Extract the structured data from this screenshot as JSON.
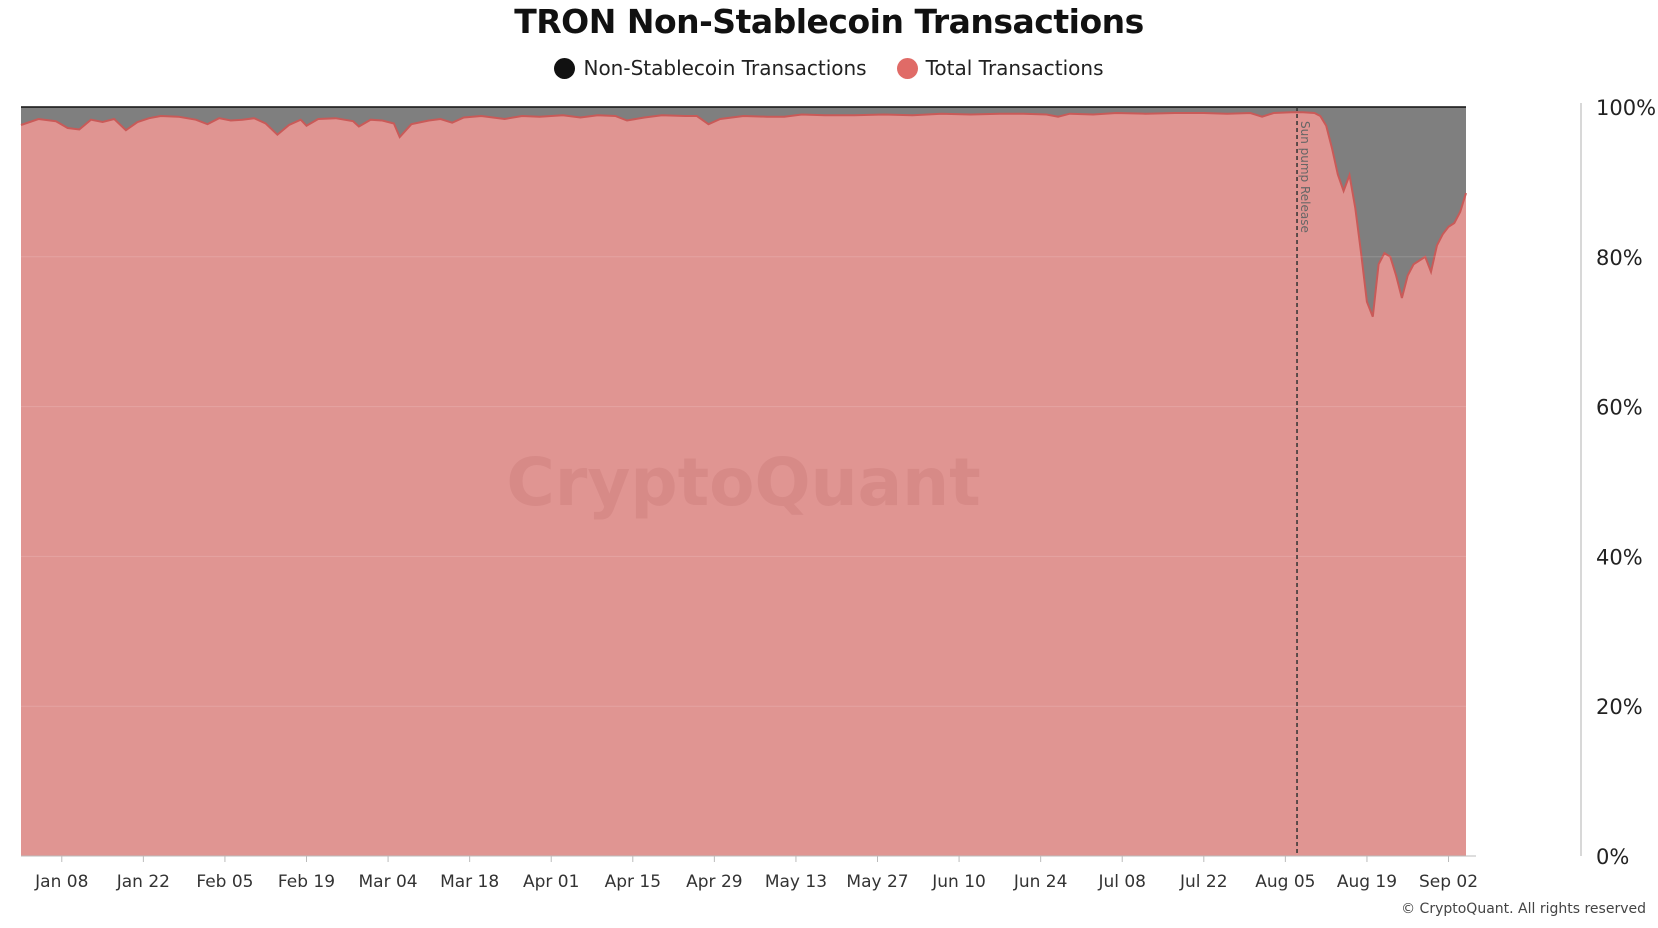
{
  "colors": {
    "non_stablecoin": "#7f7f7f",
    "total": "#e09592",
    "total_line": "#c95a58",
    "legend_non_stablecoin": "#111111",
    "legend_total": "#e06b67"
  },
  "watermark": "CryptoQuant",
  "copyright": "© CryptoQuant. All rights reserved",
  "chart_data": {
    "type": "area",
    "title": "TRON Non-Stablecoin Transactions",
    "legend": [
      {
        "name": "Non-Stablecoin Transactions",
        "color_key": "legend_non_stablecoin"
      },
      {
        "name": "Total Transactions",
        "color_key": "legend_total"
      }
    ],
    "legend_position": "top-center",
    "x_ticks": [
      "Jan 08",
      "Jan 22",
      "Feb 05",
      "Feb 19",
      "Mar 04",
      "Mar 18",
      "Apr 01",
      "Apr 15",
      "Apr 29",
      "May 13",
      "May 27",
      "Jun 10",
      "Jun 24",
      "Jul 08",
      "Jul 22",
      "Aug 05",
      "Aug 19",
      "Sep 02"
    ],
    "y_ticks": [
      "0%",
      "20%",
      "40%",
      "60%",
      "80%",
      "100%"
    ],
    "ylim": [
      0,
      100
    ],
    "y_axis_side": "right",
    "grid": true,
    "annotation": {
      "date": "2024-08-07",
      "label": "Sun pump Release",
      "style": "dashed-vertical-line"
    },
    "series": [
      {
        "name": "Total Transactions",
        "points": [
          [
            "2024-01-01",
            97.6
          ],
          [
            "2024-01-04",
            98.4
          ],
          [
            "2024-01-07",
            98.1
          ],
          [
            "2024-01-09",
            97.2
          ],
          [
            "2024-01-11",
            97.0
          ],
          [
            "2024-01-13",
            98.3
          ],
          [
            "2024-01-15",
            98.0
          ],
          [
            "2024-01-17",
            98.4
          ],
          [
            "2024-01-19",
            96.9
          ],
          [
            "2024-01-21",
            98.0
          ],
          [
            "2024-01-23",
            98.5
          ],
          [
            "2024-01-25",
            98.8
          ],
          [
            "2024-01-28",
            98.7
          ],
          [
            "2024-01-31",
            98.3
          ],
          [
            "2024-02-02",
            97.7
          ],
          [
            "2024-02-04",
            98.5
          ],
          [
            "2024-02-06",
            98.2
          ],
          [
            "2024-02-08",
            98.3
          ],
          [
            "2024-02-10",
            98.5
          ],
          [
            "2024-02-12",
            97.8
          ],
          [
            "2024-02-14",
            96.3
          ],
          [
            "2024-02-16",
            97.6
          ],
          [
            "2024-02-18",
            98.3
          ],
          [
            "2024-02-19",
            97.5
          ],
          [
            "2024-02-21",
            98.4
          ],
          [
            "2024-02-24",
            98.5
          ],
          [
            "2024-02-27",
            98.1
          ],
          [
            "2024-02-28",
            97.4
          ],
          [
            "2024-03-01",
            98.3
          ],
          [
            "2024-03-03",
            98.2
          ],
          [
            "2024-03-05",
            97.8
          ],
          [
            "2024-03-06",
            96.0
          ],
          [
            "2024-03-08",
            97.7
          ],
          [
            "2024-03-11",
            98.2
          ],
          [
            "2024-03-13",
            98.4
          ],
          [
            "2024-03-15",
            97.9
          ],
          [
            "2024-03-17",
            98.6
          ],
          [
            "2024-03-20",
            98.8
          ],
          [
            "2024-03-24",
            98.4
          ],
          [
            "2024-03-27",
            98.8
          ],
          [
            "2024-03-30",
            98.7
          ],
          [
            "2024-04-03",
            98.9
          ],
          [
            "2024-04-06",
            98.6
          ],
          [
            "2024-04-09",
            98.9
          ],
          [
            "2024-04-12",
            98.8
          ],
          [
            "2024-04-14",
            98.2
          ],
          [
            "2024-04-17",
            98.6
          ],
          [
            "2024-04-20",
            98.9
          ],
          [
            "2024-04-24",
            98.8
          ],
          [
            "2024-04-26",
            98.8
          ],
          [
            "2024-04-28",
            97.7
          ],
          [
            "2024-04-30",
            98.4
          ],
          [
            "2024-05-04",
            98.8
          ],
          [
            "2024-05-08",
            98.7
          ],
          [
            "2024-05-11",
            98.7
          ],
          [
            "2024-05-14",
            99.0
          ],
          [
            "2024-05-18",
            98.9
          ],
          [
            "2024-05-23",
            98.9
          ],
          [
            "2024-05-28",
            99.0
          ],
          [
            "2024-06-02",
            98.9
          ],
          [
            "2024-06-07",
            99.1
          ],
          [
            "2024-06-12",
            99.0
          ],
          [
            "2024-06-17",
            99.1
          ],
          [
            "2024-06-21",
            99.1
          ],
          [
            "2024-06-25",
            99.0
          ],
          [
            "2024-06-27",
            98.7
          ],
          [
            "2024-06-29",
            99.1
          ],
          [
            "2024-07-03",
            99.0
          ],
          [
            "2024-07-07",
            99.2
          ],
          [
            "2024-07-12",
            99.1
          ],
          [
            "2024-07-17",
            99.2
          ],
          [
            "2024-07-22",
            99.2
          ],
          [
            "2024-07-26",
            99.1
          ],
          [
            "2024-07-30",
            99.2
          ],
          [
            "2024-08-01",
            98.7
          ],
          [
            "2024-08-03",
            99.2
          ],
          [
            "2024-08-06",
            99.3
          ],
          [
            "2024-08-08",
            99.3
          ],
          [
            "2024-08-10",
            99.2
          ],
          [
            "2024-08-11",
            98.8
          ],
          [
            "2024-08-12",
            97.5
          ],
          [
            "2024-08-13",
            94.5
          ],
          [
            "2024-08-14",
            91.0
          ],
          [
            "2024-08-15",
            88.8
          ],
          [
            "2024-08-16",
            90.9
          ],
          [
            "2024-08-17",
            86.5
          ],
          [
            "2024-08-18",
            80.5
          ],
          [
            "2024-08-19",
            74.0
          ],
          [
            "2024-08-20",
            72.0
          ],
          [
            "2024-08-21",
            79.0
          ],
          [
            "2024-08-22",
            80.5
          ],
          [
            "2024-08-23",
            80.0
          ],
          [
            "2024-08-24",
            77.5
          ],
          [
            "2024-08-25",
            74.5
          ],
          [
            "2024-08-26",
            77.5
          ],
          [
            "2024-08-27",
            79.0
          ],
          [
            "2024-08-28",
            79.5
          ],
          [
            "2024-08-29",
            80.0
          ],
          [
            "2024-08-30",
            78.0
          ],
          [
            "2024-08-31",
            81.5
          ],
          [
            "2024-09-01",
            83.0
          ],
          [
            "2024-09-02",
            84.0
          ],
          [
            "2024-09-03",
            84.5
          ],
          [
            "2024-09-04",
            86.0
          ],
          [
            "2024-09-05",
            88.5
          ]
        ]
      },
      {
        "name": "Non-Stablecoin Transactions",
        "note_fill": "remaining share up to 100%",
        "points": []
      }
    ]
  }
}
